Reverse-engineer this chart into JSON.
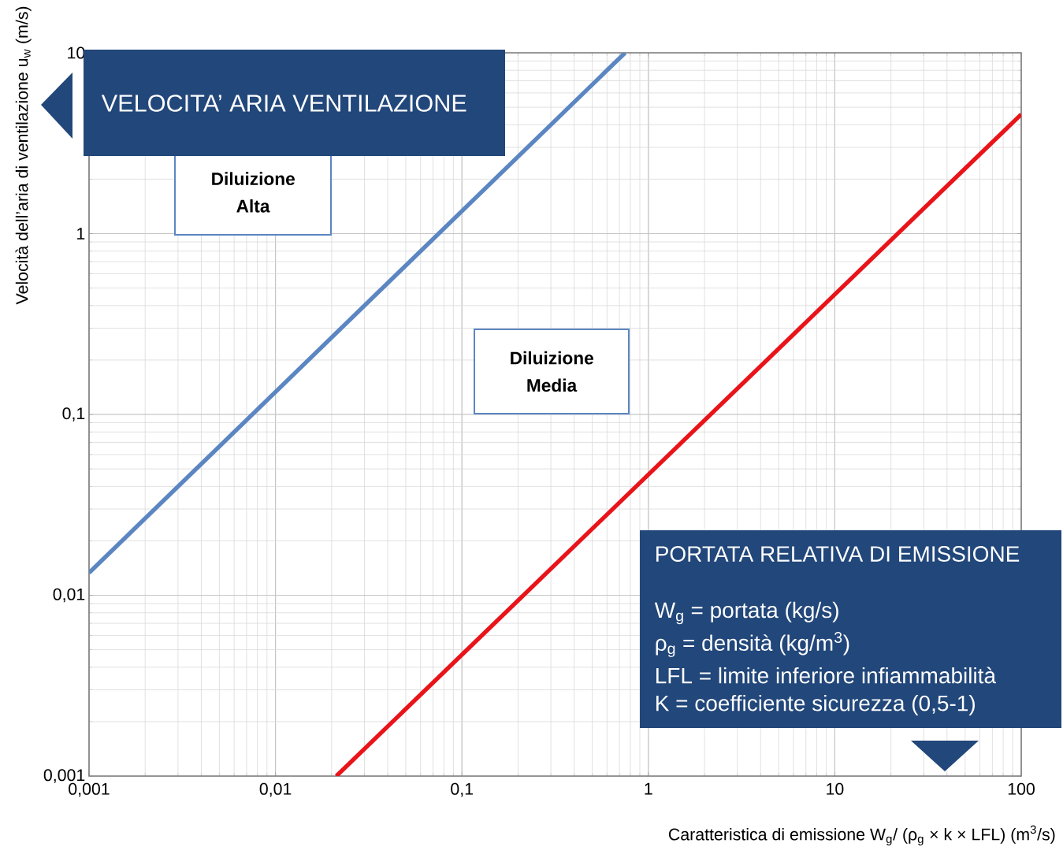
{
  "chart_data": {
    "type": "line",
    "xlabel": "Caratteristica di emissione  W$_{g}$/ (ρ$_{g}$ × k × LFL)   (m$^{3}$/s)",
    "ylabel": "Velocità dell’aria di ventilazione u$_{w}$   (m/s)",
    "log": "xy",
    "grid": true,
    "marker": "none",
    "line_style": "solid",
    "xlim": [
      0.001,
      100
    ],
    "ylim": [
      0.001,
      10
    ],
    "xticks": [
      {
        "value": 0.001,
        "label": "0,001"
      },
      {
        "value": 0.01,
        "label": "0,01"
      },
      {
        "value": 0.1,
        "label": "0,1"
      },
      1,
      10,
      100
    ],
    "yticks": [
      {
        "value": 0.001,
        "label": "0,001"
      },
      {
        "value": 0.01,
        "label": "0,01"
      },
      {
        "value": 0.1,
        "label": "0,1"
      },
      1,
      10
    ],
    "series": [
      {
        "color": "#5b86c2",
        "x": [
          0.001,
          0.75
        ],
        "values": [
          0.0133,
          10
        ]
      },
      {
        "color": "#e8141a",
        "x": [
          0.0212,
          100
        ],
        "values": [
          0.001,
          4.57
        ]
      }
    ],
    "annotations": [
      "VELOCITA’ ARIA VENTILAZIONE",
      "Diluizione Alta",
      "Diluizione Media",
      "PORTATA RELATIVA DI EMISSIONE",
      "W$_{g}$ = portata (kg/s)",
      "ρ$_{g}$ = densità (kg/m$^{3}$)",
      "LFL = limite inferiore infiammabilità",
      "K = coefficiente sicurezza (0,5-1)"
    ]
  }
}
